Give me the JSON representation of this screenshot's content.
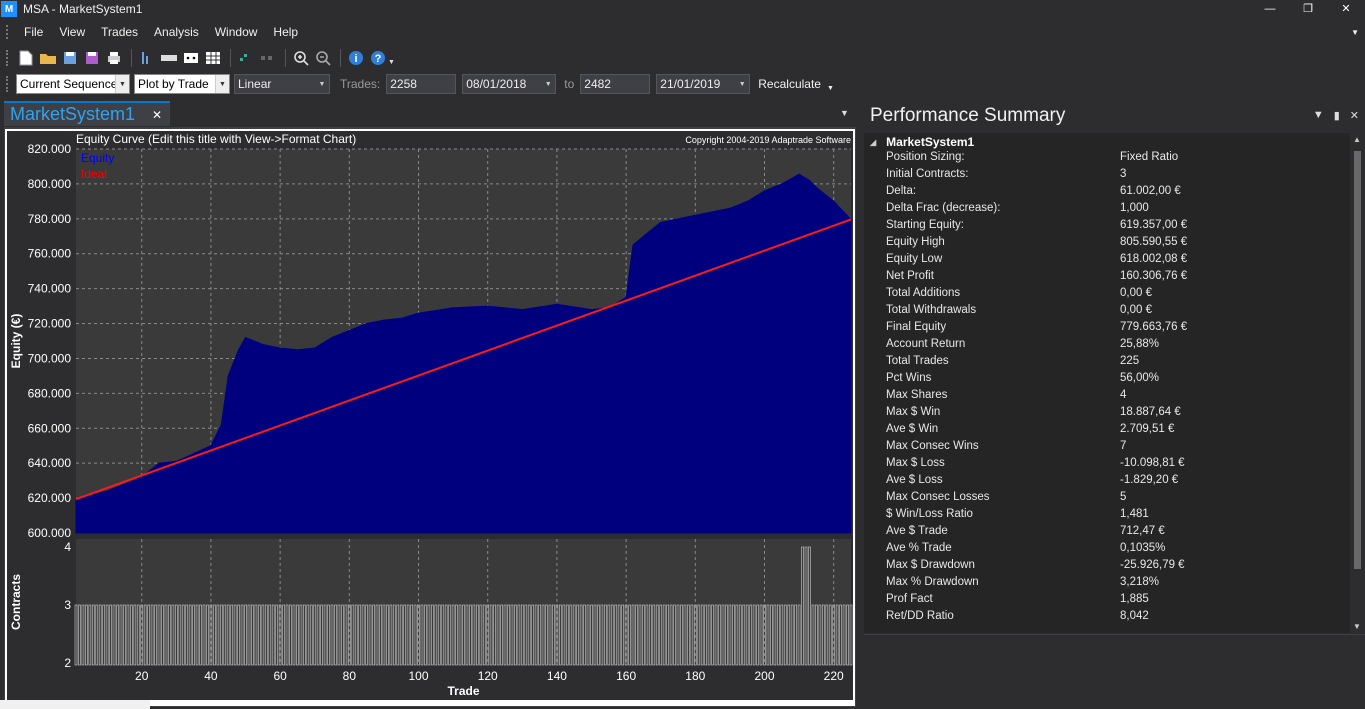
{
  "window": {
    "title": "MSA - MarketSystem1",
    "icon": "app-logo-icon"
  },
  "menu": [
    "File",
    "View",
    "Trades",
    "Analysis",
    "Window",
    "Help"
  ],
  "toolbar": {
    "sequence": "Current Sequence",
    "plot_by": "Plot by Trade",
    "scale": "Linear",
    "trades_label": "Trades:",
    "trade_from": "2258",
    "date_from": "08/01/2018",
    "to_label": "to",
    "trade_to": "2482",
    "date_to": "21/01/2019",
    "recalc": "Recalculate"
  },
  "doc_tab": {
    "label": "MarketSystem1"
  },
  "chart": {
    "title": "Equity Curve (Edit this title with View->Format Chart)",
    "copyright": "Copyright 2004-2019 Adaptrade Software",
    "y_label": "Equity (€)",
    "legend": [
      {
        "name": "Equity",
        "color": "#0000ff"
      },
      {
        "name": "Ideal",
        "color": "#ff0000"
      }
    ],
    "y_ticks": [
      "820.000",
      "800.000",
      "780.000",
      "760.000",
      "740.000",
      "720.000",
      "700.000",
      "680.000",
      "660.000",
      "640.000",
      "620.000",
      "600.000"
    ],
    "y_tick_values": [
      820000,
      800000,
      780000,
      760000,
      740000,
      720000,
      700000,
      680000,
      660000,
      640000,
      620000,
      600000
    ],
    "lower_y_label": "Contracts",
    "lower_y_ticks": [
      "4",
      "3",
      "2"
    ],
    "x_ticks": [
      "20",
      "40",
      "60",
      "80",
      "100",
      "120",
      "140",
      "160",
      "180",
      "200",
      "220"
    ],
    "x_label": "Trade"
  },
  "chart_data": {
    "type": "area",
    "title": "Equity Curve (Edit this title with View->Format Chart)",
    "xlabel": "Trade",
    "ylabel": "Equity (€)",
    "xlim": [
      1,
      225
    ],
    "ylim": [
      600000,
      820000
    ],
    "series": [
      {
        "name": "Equity",
        "x": [
          1,
          10,
          20,
          25,
          30,
          40,
          43,
          45,
          48,
          50,
          55,
          60,
          65,
          70,
          75,
          80,
          85,
          90,
          95,
          100,
          110,
          120,
          130,
          140,
          150,
          155,
          160,
          162,
          165,
          170,
          180,
          190,
          195,
          200,
          205,
          210,
          213,
          215,
          220,
          225
        ],
        "y": [
          619357,
          624000,
          632000,
          640000,
          641000,
          650000,
          662000,
          690000,
          705000,
          712000,
          708000,
          706000,
          705000,
          706000,
          712000,
          716000,
          720000,
          722000,
          723000,
          726000,
          729000,
          730000,
          728000,
          731000,
          728000,
          729000,
          735000,
          765000,
          770000,
          778000,
          782000,
          786000,
          790000,
          796000,
          800000,
          805590,
          802000,
          798000,
          790000,
          779664
        ]
      },
      {
        "name": "Ideal",
        "x": [
          1,
          225
        ],
        "y": [
          619357,
          779664
        ]
      }
    ],
    "lower": {
      "ylabel": "Contracts",
      "ylim": [
        2,
        4
      ],
      "values": {
        "default": 3,
        "trades_211_213": 4
      }
    }
  },
  "summary": {
    "title": "Performance Summary",
    "root": "MarketSystem1",
    "rows": [
      {
        "k": "Position Sizing:",
        "v": "Fixed Ratio"
      },
      {
        "k": "Initial Contracts:",
        "v": "3"
      },
      {
        "k": "Delta:",
        "v": "61.002,00 €"
      },
      {
        "k": "Delta Frac (decrease):",
        "v": "1,000"
      },
      {
        "k": "Starting Equity:",
        "v": "619.357,00 €"
      },
      {
        "k": "Equity High",
        "v": "805.590,55 €"
      },
      {
        "k": "Equity Low",
        "v": "618.002,08 €"
      },
      {
        "k": "Net Profit",
        "v": "160.306,76 €"
      },
      {
        "k": "Total Additions",
        "v": "0,00 €"
      },
      {
        "k": "Total Withdrawals",
        "v": "0,00 €"
      },
      {
        "k": "Final Equity",
        "v": "779.663,76 €"
      },
      {
        "k": "Account Return",
        "v": "25,88%"
      },
      {
        "k": "Total Trades",
        "v": "225"
      },
      {
        "k": "Pct Wins",
        "v": "56,00%"
      },
      {
        "k": "Max Shares",
        "v": "4"
      },
      {
        "k": "Max $ Win",
        "v": "18.887,64 €"
      },
      {
        "k": "Ave $ Win",
        "v": "2.709,51 €"
      },
      {
        "k": "Max Consec Wins",
        "v": "7"
      },
      {
        "k": "Max $ Loss",
        "v": "-10.098,81 €"
      },
      {
        "k": "Ave $ Loss",
        "v": "-1.829,20 €"
      },
      {
        "k": "Max Consec Losses",
        "v": "5"
      },
      {
        "k": "$ Win/Loss Ratio",
        "v": "1,481"
      },
      {
        "k": "Ave $ Trade",
        "v": "712,47 €"
      },
      {
        "k": "Ave % Trade",
        "v": "0,1035%"
      },
      {
        "k": "Max $ Drawdown",
        "v": "-25.926,79 €"
      },
      {
        "k": "Max % Drawdown",
        "v": "3,218%"
      },
      {
        "k": "Prof Fact",
        "v": "1,885"
      },
      {
        "k": "Ret/DD Ratio",
        "v": "8,042"
      }
    ]
  }
}
